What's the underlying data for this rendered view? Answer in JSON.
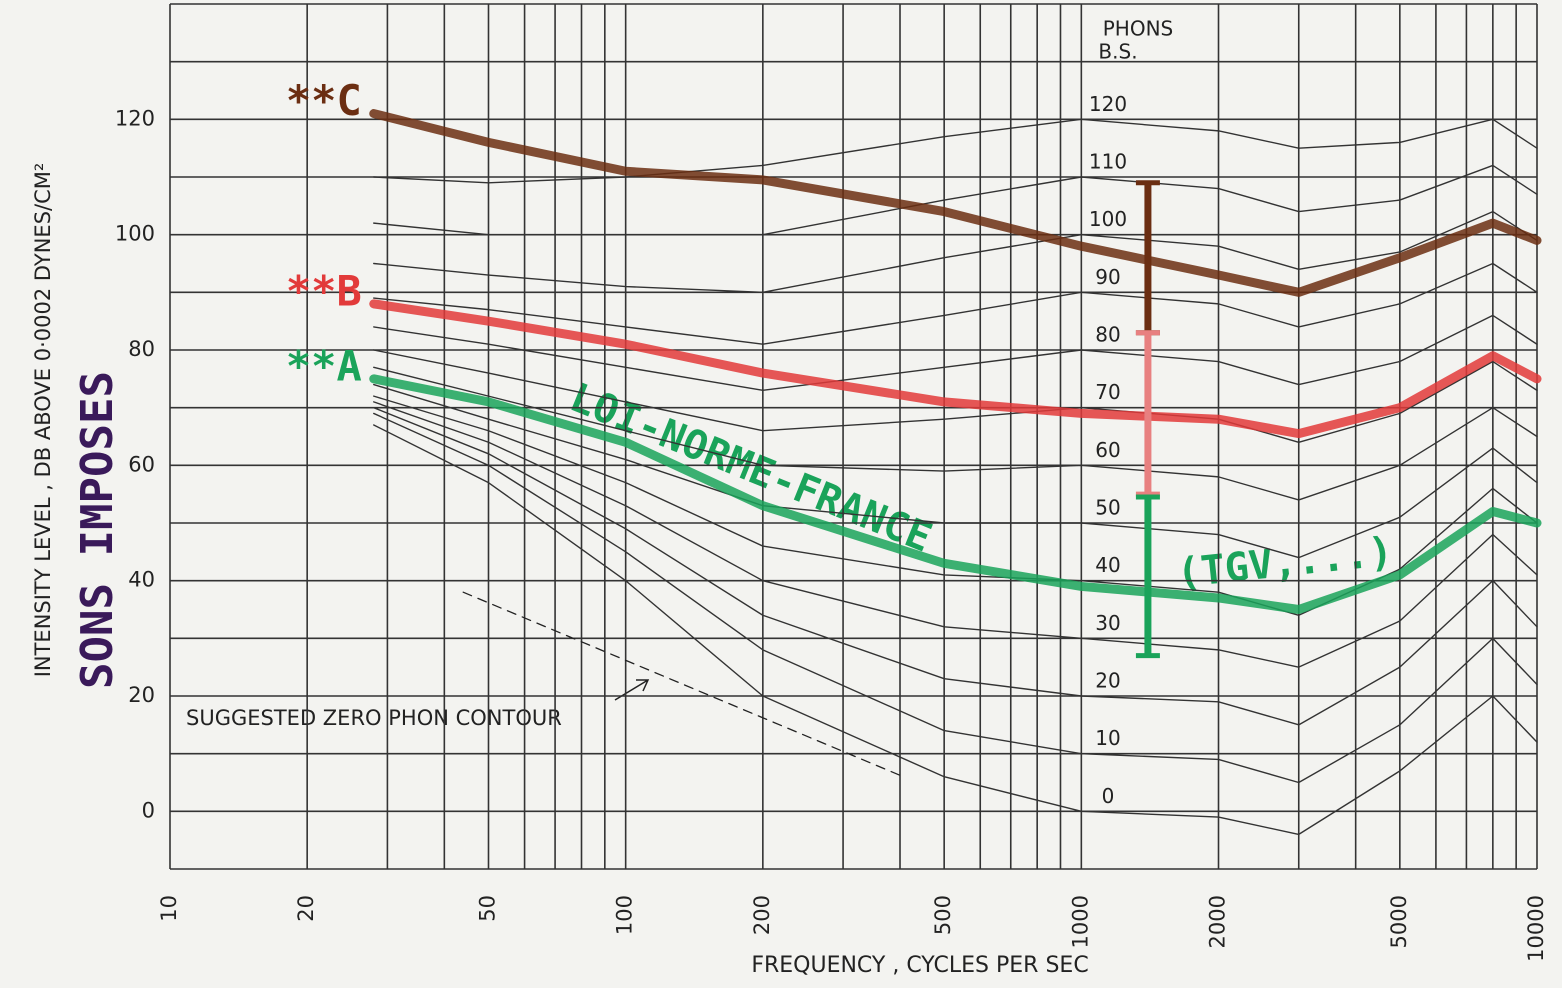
{
  "chart_data": {
    "type": "line",
    "x_label": "FREQUENCY , CYCLES PER SEC",
    "y_label": "INTENSITY LEVEL , DB ABOVE 0·0002 DYNES/CM²",
    "xscale": "log",
    "xlim": [
      10,
      10000
    ],
    "ylim": [
      -10,
      140
    ],
    "xticks": [
      10,
      20,
      50,
      100,
      200,
      500,
      1000,
      2000,
      5000,
      10000
    ],
    "yticks": [
      0,
      20,
      40,
      60,
      80,
      100,
      120
    ],
    "x_grid": [
      10,
      20,
      30,
      40,
      50,
      60,
      70,
      80,
      90,
      100,
      200,
      300,
      400,
      500,
      600,
      700,
      800,
      900,
      1000,
      2000,
      3000,
      4000,
      5000,
      6000,
      7000,
      8000,
      9000,
      10000
    ],
    "y_grid": [
      -10,
      0,
      10,
      20,
      30,
      40,
      50,
      60,
      70,
      80,
      90,
      100,
      110,
      120,
      130,
      140
    ],
    "grid": true,
    "phons_header": [
      "PHONS",
      "B.S."
    ],
    "x": [
      28,
      50,
      100,
      200,
      500,
      1000,
      2000,
      3000,
      5000,
      8000,
      10000
    ],
    "contours": [
      {
        "name": "0",
        "color": "#333333",
        "values": [
          67,
          57,
          40,
          20,
          6,
          0,
          -1,
          -4,
          7,
          20,
          12
        ]
      },
      {
        "name": "10",
        "color": "#333333",
        "values": [
          69,
          60,
          45,
          28,
          14,
          10,
          9,
          5,
          15,
          30,
          22
        ]
      },
      {
        "name": "20",
        "color": "#333333",
        "values": [
          70,
          62,
          49,
          34,
          23,
          20,
          19,
          15,
          25,
          40,
          32
        ]
      },
      {
        "name": "30",
        "color": "#333333",
        "values": [
          71,
          64,
          53,
          40,
          32,
          30,
          28,
          25,
          33,
          48,
          41
        ]
      },
      {
        "name": "40",
        "color": "#333333",
        "values": [
          72,
          66,
          57,
          46,
          41,
          40,
          38,
          34,
          42,
          56,
          50
        ]
      },
      {
        "name": "50",
        "color": "#333333",
        "values": [
          74,
          68,
          61,
          53,
          50,
          50,
          48,
          44,
          51,
          63,
          57
        ]
      },
      {
        "name": "60",
        "color": "#333333",
        "values": [
          77,
          72,
          66,
          60,
          59,
          60,
          58,
          54,
          60,
          70,
          65
        ]
      },
      {
        "name": "70",
        "color": "#333333",
        "values": [
          80,
          76,
          71,
          66,
          68,
          70,
          68,
          64,
          69,
          78,
          73
        ]
      },
      {
        "name": "80",
        "color": "#333333",
        "values": [
          84,
          81,
          77,
          73,
          77,
          80,
          78,
          74,
          78,
          86,
          81
        ]
      },
      {
        "name": "90",
        "color": "#333333",
        "values": [
          89,
          87,
          84,
          81,
          86,
          90,
          88,
          84,
          88,
          95,
          90
        ]
      },
      {
        "name": "100",
        "color": "#333333",
        "values": [
          95,
          93,
          91,
          90,
          96,
          100,
          98,
          94,
          97,
          104,
          99
        ]
      },
      {
        "name": "110",
        "color": "#333333",
        "values": [
          102,
          100,
          100,
          100,
          106,
          110,
          108,
          104,
          106,
          112,
          107
        ]
      },
      {
        "name": "120",
        "color": "#333333",
        "values": [
          110,
          109,
          110,
          112,
          117,
          120,
          118,
          115,
          116,
          120,
          115
        ]
      }
    ],
    "series": [
      {
        "name": "**C",
        "color": "#6b2e12",
        "values": [
          121,
          116,
          111,
          109.5,
          104,
          98,
          93,
          90,
          96,
          102,
          99
        ]
      },
      {
        "name": "**B",
        "color": "#e23a3a",
        "values": [
          88,
          85,
          81,
          76,
          71,
          69,
          68,
          65.5,
          70,
          79,
          75
        ]
      },
      {
        "name": "**A",
        "color": "#1aa35a",
        "values": [
          75,
          71,
          64,
          53,
          43,
          39,
          37,
          35,
          41,
          52,
          50
        ]
      }
    ],
    "zero_contour": {
      "label": "SUGGESTED ZERO PHON CONTOUR",
      "x": [
        44,
        407
      ],
      "values": [
        38,
        6
      ]
    },
    "ranges": [
      {
        "color": "#6b2e12",
        "x": 1400,
        "low": 83,
        "high": 109
      },
      {
        "color": "#e88080",
        "x": 1400,
        "low": 55,
        "high": 83
      },
      {
        "color": "#1aa35a",
        "x": 1400,
        "low": 27,
        "high": 54.5
      }
    ],
    "annotations": {
      "sons": "SONS IMPOSES",
      "loi": "LOI-NORME-FRANCE",
      "tgv": "(TGV,...)"
    }
  }
}
